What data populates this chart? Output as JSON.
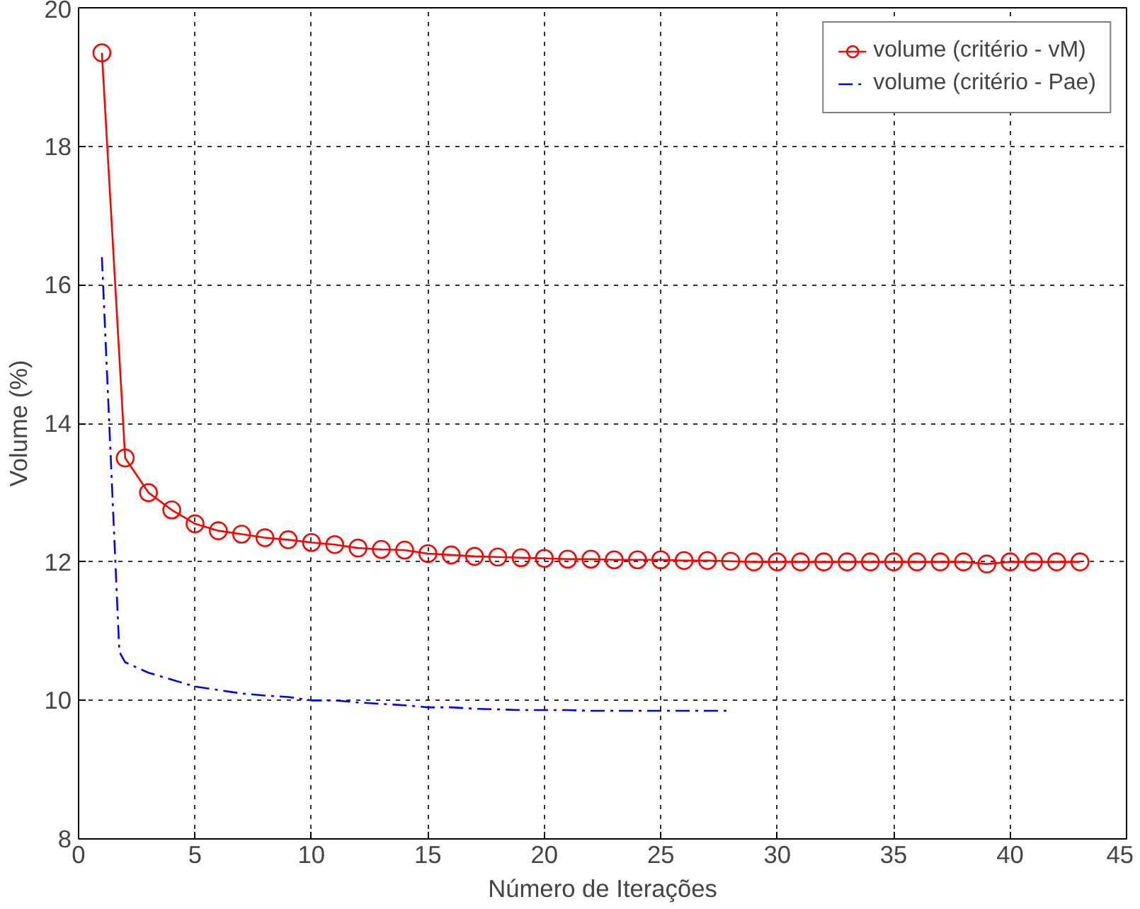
{
  "chart_data": {
    "type": "line",
    "xlabel": "Número de Iterações",
    "ylabel": "Volume (%)",
    "xlim": [
      0,
      45
    ],
    "ylim": [
      8,
      20
    ],
    "xticks": [
      0,
      5,
      10,
      15,
      20,
      25,
      30,
      35,
      40,
      45
    ],
    "yticks": [
      8,
      10,
      12,
      14,
      16,
      18,
      20
    ],
    "grid": true,
    "legend": "top right",
    "series": [
      {
        "name": "volume (critério - vM)",
        "color": "#ff0000",
        "marker": "circle",
        "line_style": "solid",
        "x": [
          1,
          2,
          3,
          4,
          5,
          6,
          7,
          8,
          9,
          10,
          11,
          12,
          13,
          14,
          15,
          16,
          17,
          18,
          19,
          20,
          21,
          22,
          23,
          24,
          25,
          26,
          27,
          28,
          29,
          30,
          31,
          32,
          33,
          34,
          35,
          36,
          37,
          38,
          39,
          40,
          41,
          42,
          43
        ],
        "values": [
          19.35,
          13.5,
          13.0,
          12.75,
          12.55,
          12.45,
          12.4,
          12.35,
          12.32,
          12.28,
          12.25,
          12.2,
          12.18,
          12.17,
          12.12,
          12.1,
          12.08,
          12.07,
          12.06,
          12.05,
          12.04,
          12.04,
          12.03,
          12.03,
          12.03,
          12.02,
          12.02,
          12.01,
          12.0,
          12.0,
          12.0,
          12.0,
          12.0,
          12.0,
          12.0,
          12.0,
          12.0,
          12.0,
          11.97,
          12.0,
          12.0,
          12.0,
          12.0
        ]
      },
      {
        "name": "volume (critério - Pae)",
        "color": "#0000ff",
        "marker": "none",
        "line_style": "dashdot",
        "x": [
          1,
          1.75,
          2,
          3,
          4,
          5,
          6,
          7,
          8,
          9,
          10,
          11,
          12,
          13,
          14,
          15,
          16,
          17,
          18,
          19,
          20,
          21,
          22,
          23,
          24,
          25,
          26,
          27,
          28
        ],
        "values": [
          16.4,
          10.7,
          10.55,
          10.4,
          10.3,
          10.2,
          10.15,
          10.1,
          10.07,
          10.05,
          10.0,
          10.0,
          9.97,
          9.95,
          9.93,
          9.9,
          9.9,
          9.88,
          9.87,
          9.86,
          9.86,
          9.86,
          9.85,
          9.85,
          9.85,
          9.85,
          9.85,
          9.85,
          9.85
        ]
      }
    ]
  }
}
